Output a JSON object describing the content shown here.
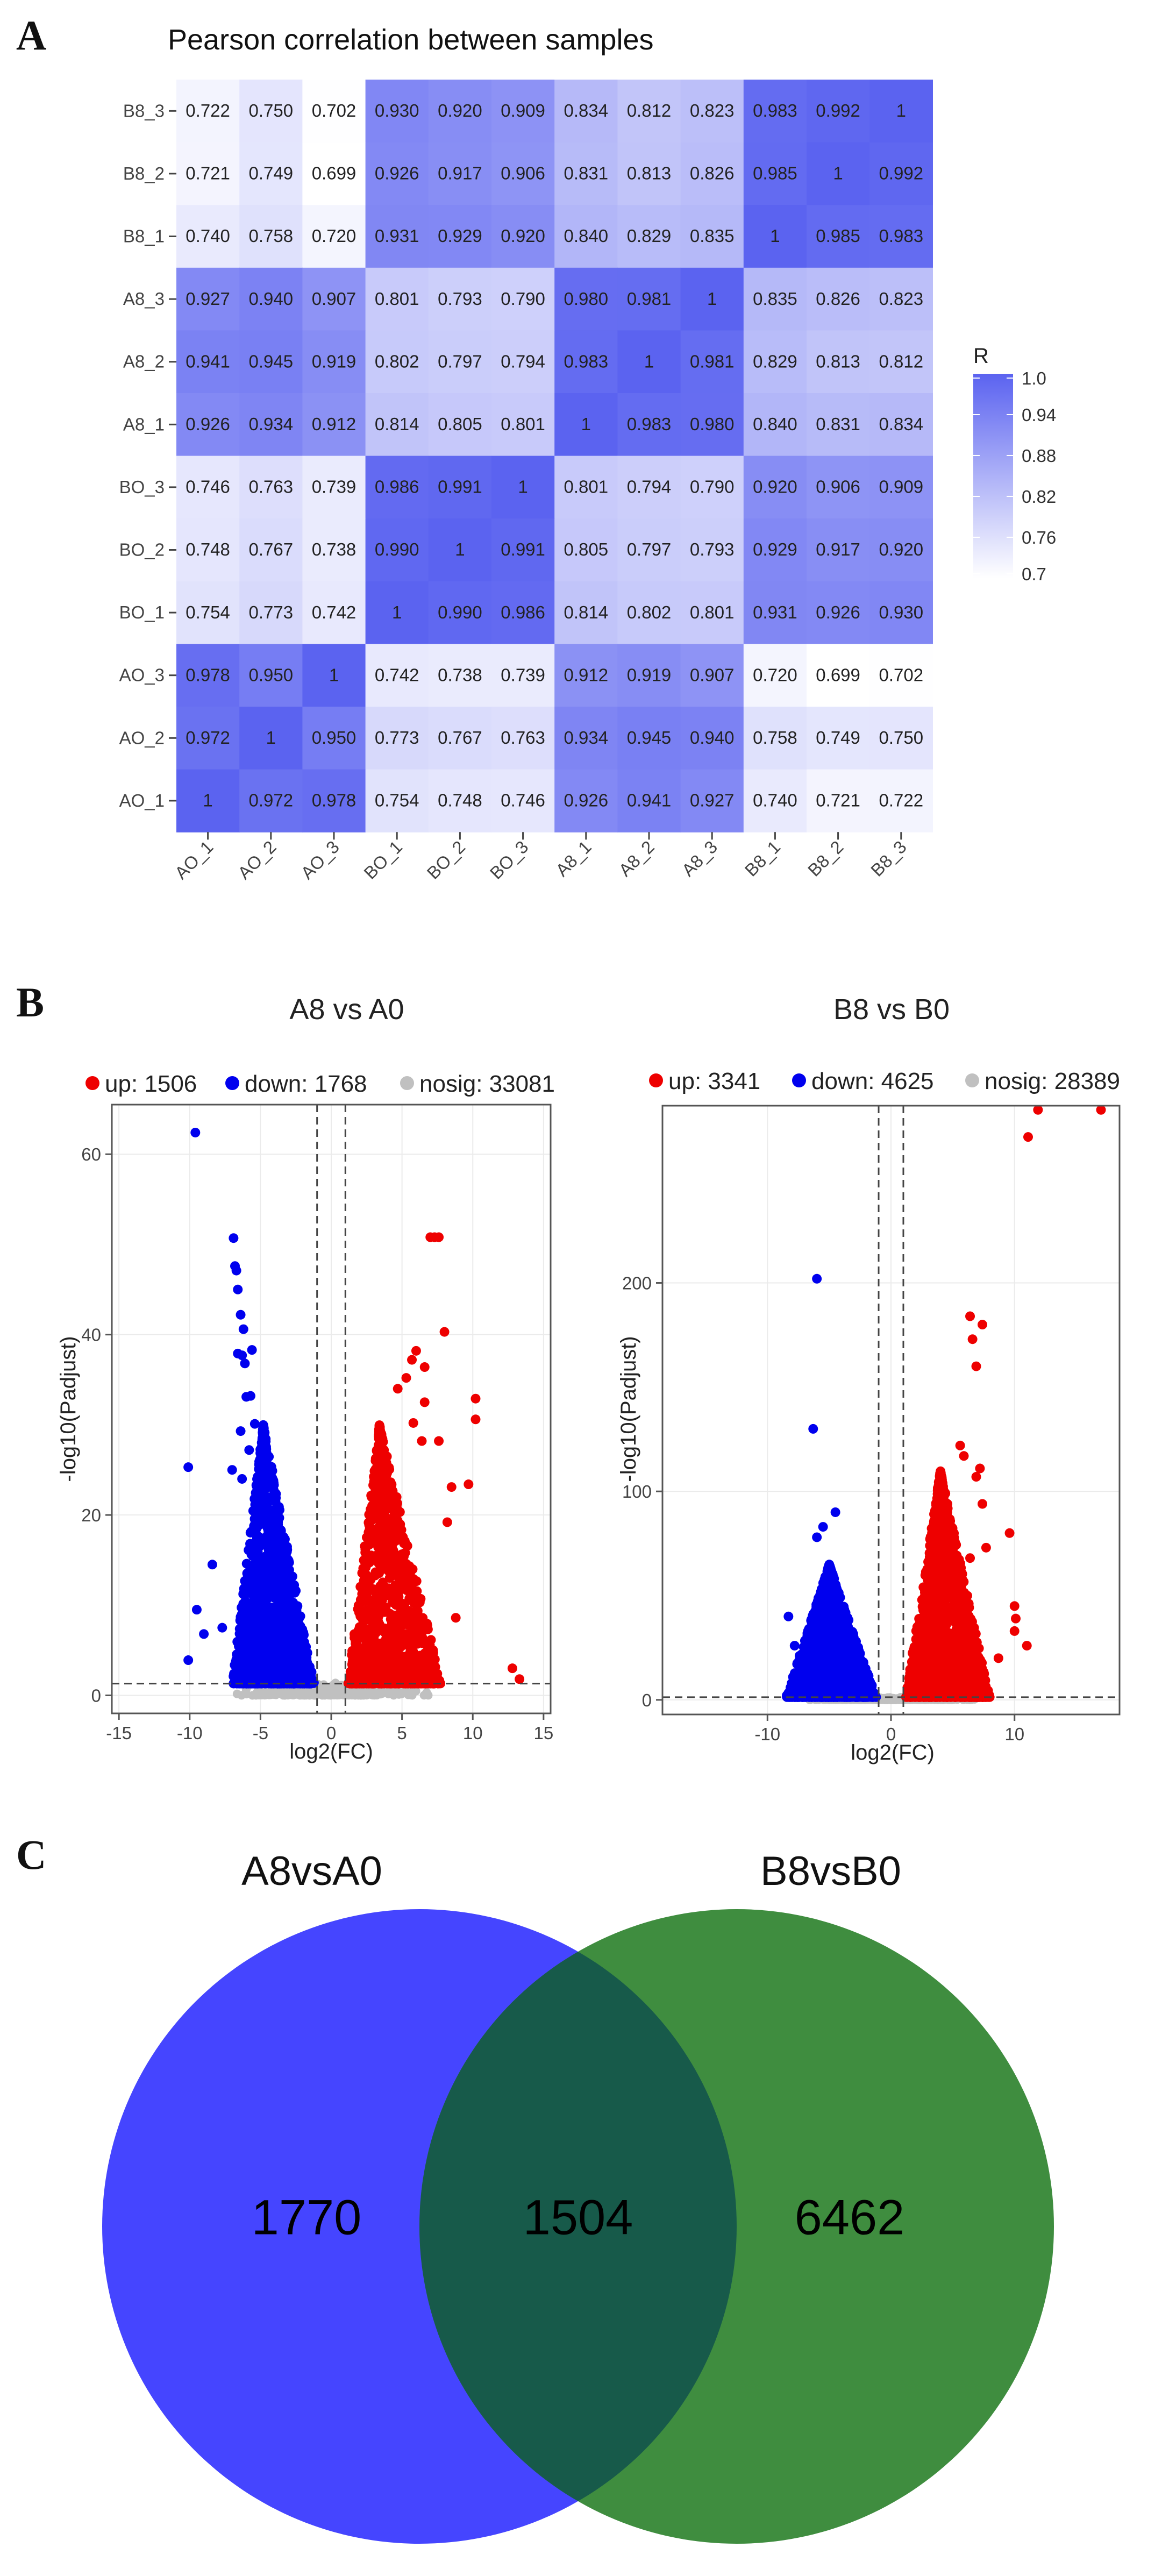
{
  "panel_labels": [
    "A",
    "B",
    "C"
  ],
  "colors": {
    "heat_high": "#5b63f0",
    "heat_low": "#ffffff",
    "up": "#ee0000",
    "down": "#0000ee",
    "nosig": "#c0c0c0",
    "venn_left": "#4545ff",
    "venn_right": "#3f8d3f",
    "venn_overlap": "#175a4a"
  },
  "chart_data": [
    {
      "type": "heatmap",
      "title": "Pearson correlation between samples",
      "rows": [
        "B8_3",
        "B8_2",
        "B8_1",
        "A8_3",
        "A8_2",
        "A8_1",
        "BO_3",
        "BO_2",
        "BO_1",
        "AO_3",
        "AO_2",
        "AO_1"
      ],
      "columns": [
        "AO_1",
        "AO_2",
        "AO_3",
        "BO_1",
        "BO_2",
        "BO_3",
        "A8_1",
        "A8_2",
        "A8_3",
        "B8_1",
        "B8_2",
        "B8_3"
      ],
      "values": [
        [
          "0.722",
          "0.750",
          "0.702",
          "0.930",
          "0.920",
          "0.909",
          "0.834",
          "0.812",
          "0.823",
          "0.983",
          "0.992",
          "1"
        ],
        [
          "0.721",
          "0.749",
          "0.699",
          "0.926",
          "0.917",
          "0.906",
          "0.831",
          "0.813",
          "0.826",
          "0.985",
          "1",
          "0.992"
        ],
        [
          "0.740",
          "0.758",
          "0.720",
          "0.931",
          "0.929",
          "0.920",
          "0.840",
          "0.829",
          "0.835",
          "1",
          "0.985",
          "0.983"
        ],
        [
          "0.927",
          "0.940",
          "0.907",
          "0.801",
          "0.793",
          "0.790",
          "0.980",
          "0.981",
          "1",
          "0.835",
          "0.826",
          "0.823"
        ],
        [
          "0.941",
          "0.945",
          "0.919",
          "0.802",
          "0.797",
          "0.794",
          "0.983",
          "1",
          "0.981",
          "0.829",
          "0.813",
          "0.812"
        ],
        [
          "0.926",
          "0.934",
          "0.912",
          "0.814",
          "0.805",
          "0.801",
          "1",
          "0.983",
          "0.980",
          "0.840",
          "0.831",
          "0.834"
        ],
        [
          "0.746",
          "0.763",
          "0.739",
          "0.986",
          "0.991",
          "1",
          "0.801",
          "0.794",
          "0.790",
          "0.920",
          "0.906",
          "0.909"
        ],
        [
          "0.748",
          "0.767",
          "0.738",
          "0.990",
          "1",
          "0.991",
          "0.805",
          "0.797",
          "0.793",
          "0.929",
          "0.917",
          "0.920"
        ],
        [
          "0.754",
          "0.773",
          "0.742",
          "1",
          "0.990",
          "0.986",
          "0.814",
          "0.802",
          "0.801",
          "0.931",
          "0.926",
          "0.930"
        ],
        [
          "0.978",
          "0.950",
          "1",
          "0.742",
          "0.738",
          "0.739",
          "0.912",
          "0.919",
          "0.907",
          "0.720",
          "0.699",
          "0.702"
        ],
        [
          "0.972",
          "1",
          "0.950",
          "0.773",
          "0.767",
          "0.763",
          "0.934",
          "0.945",
          "0.940",
          "0.758",
          "0.749",
          "0.750"
        ],
        [
          "1",
          "0.972",
          "0.978",
          "0.754",
          "0.748",
          "0.746",
          "0.926",
          "0.941",
          "0.927",
          "0.740",
          "0.721",
          "0.722"
        ]
      ],
      "legend": {
        "title": "R",
        "ticks": [
          "1.0",
          "0.94",
          "0.88",
          "0.82",
          "0.76",
          "0.7"
        ],
        "range": [
          0.7,
          1.0
        ]
      }
    },
    {
      "type": "scatter",
      "title": "A8 vs A0",
      "legend": [
        {
          "label": "up: 1506",
          "color": "#ee0000"
        },
        {
          "label": "down: 1768",
          "color": "#0000ee"
        },
        {
          "label": "nosig: 33081",
          "color": "#c0c0c0"
        }
      ],
      "xlabel": "log2(FC)",
      "ylabel": "-log10(Padjust)",
      "xlim": [
        -15.5,
        15.5
      ],
      "ylim": [
        -2,
        65.5
      ],
      "xticks": [
        "-15",
        "-10",
        "-5",
        "0",
        "5",
        "10",
        "15"
      ],
      "yticks": [
        "0",
        "20",
        "40",
        "60"
      ],
      "fc_threshold": 1,
      "p_threshold": 1.3,
      "down_points": [
        [
          -9.6,
          62.4
        ],
        [
          -6.9,
          50.7
        ],
        [
          -6.8,
          47.6
        ],
        [
          -6.7,
          47.1
        ],
        [
          -6.6,
          45.0
        ],
        [
          -6.4,
          42.2
        ],
        [
          -6.2,
          40.6
        ],
        [
          -6.6,
          37.9
        ],
        [
          -6.3,
          37.7
        ],
        [
          -6.1,
          36.8
        ],
        [
          -5.6,
          38.3
        ],
        [
          -6.0,
          33.1
        ],
        [
          -5.7,
          33.2
        ],
        [
          -6.4,
          29.3
        ],
        [
          -5.4,
          30.1
        ],
        [
          -5.8,
          27.2
        ],
        [
          -10.1,
          25.3
        ],
        [
          -7.0,
          25.0
        ],
        [
          -6.3,
          24.0
        ],
        [
          -8.4,
          14.5
        ],
        [
          -9.5,
          9.5
        ],
        [
          -10.1,
          3.9
        ],
        [
          -9.0,
          6.8
        ],
        [
          -7.7,
          7.5
        ]
      ],
      "up_points": [
        [
          7.0,
          50.8
        ],
        [
          7.3,
          50.8
        ],
        [
          7.6,
          50.8
        ],
        [
          8.0,
          40.3
        ],
        [
          10.2,
          32.9
        ],
        [
          10.2,
          30.6
        ],
        [
          6.6,
          36.4
        ],
        [
          6.0,
          38.2
        ],
        [
          5.7,
          37.2
        ],
        [
          5.3,
          35.2
        ],
        [
          4.7,
          34.0
        ],
        [
          6.6,
          32.5
        ],
        [
          5.8,
          30.2
        ],
        [
          6.4,
          28.2
        ],
        [
          7.6,
          28.2
        ],
        [
          9.7,
          23.4
        ],
        [
          8.5,
          23.1
        ],
        [
          8.2,
          19.2
        ],
        [
          8.8,
          8.6
        ],
        [
          12.8,
          3.0
        ],
        [
          13.3,
          1.8
        ]
      ],
      "down_blob": {
        "tip": [
          -4.8,
          30
        ],
        "base_left": -7.0,
        "base_right": -1.2,
        "count": 1400
      },
      "up_blob": {
        "tip": [
          3.4,
          30
        ],
        "base_left": 1.2,
        "base_right": 7.8,
        "count": 1200
      }
    },
    {
      "type": "scatter",
      "title": "B8 vs B0",
      "legend": [
        {
          "label": "up: 3341",
          "color": "#ee0000"
        },
        {
          "label": "down: 4625",
          "color": "#0000ee"
        },
        {
          "label": "nosig: 28389",
          "color": "#c0c0c0"
        }
      ],
      "xlabel": "log2(FC)",
      "ylabel": "-log10(Padjust)",
      "xlim": [
        -18.5,
        18.5
      ],
      "ylim": [
        -7,
        285
      ],
      "xticks": [
        "-10",
        "0",
        "10"
      ],
      "yticks": [
        "0",
        "100",
        "200"
      ],
      "fc_threshold": 1,
      "p_threshold": 1.3,
      "down_points": [
        [
          -6.0,
          202
        ],
        [
          -6.3,
          130
        ],
        [
          -4.5,
          90
        ],
        [
          -5.5,
          83
        ],
        [
          -6.0,
          78
        ],
        [
          -8.3,
          40
        ],
        [
          -7.8,
          26
        ]
      ],
      "up_points": [
        [
          11.9,
          283
        ],
        [
          17.0,
          283
        ],
        [
          11.1,
          270
        ],
        [
          6.4,
          184
        ],
        [
          7.4,
          180
        ],
        [
          6.6,
          173
        ],
        [
          6.9,
          160
        ],
        [
          5.6,
          122
        ],
        [
          5.9,
          117
        ],
        [
          7.2,
          111
        ],
        [
          6.9,
          107
        ],
        [
          7.4,
          94
        ],
        [
          9.6,
          80
        ],
        [
          7.7,
          73
        ],
        [
          6.4,
          68
        ],
        [
          10.0,
          45
        ],
        [
          11.0,
          26
        ],
        [
          10.1,
          39
        ],
        [
          8.7,
          20
        ],
        [
          10.0,
          33
        ]
      ],
      "down_blob": {
        "tip": [
          -5.0,
          65
        ],
        "base_left": -8.5,
        "base_right": -1.2,
        "count": 1500
      },
      "up_blob": {
        "tip": [
          4.0,
          110
        ],
        "base_left": 1.2,
        "base_right": 8.0,
        "count": 1700
      }
    },
    {
      "type": "venn",
      "sets": [
        "A8vsA0",
        "B8vsB0"
      ],
      "values": {
        "A8vsA0_only": "1770",
        "both": "1504",
        "B8vsB0_only": "6462"
      }
    }
  ]
}
